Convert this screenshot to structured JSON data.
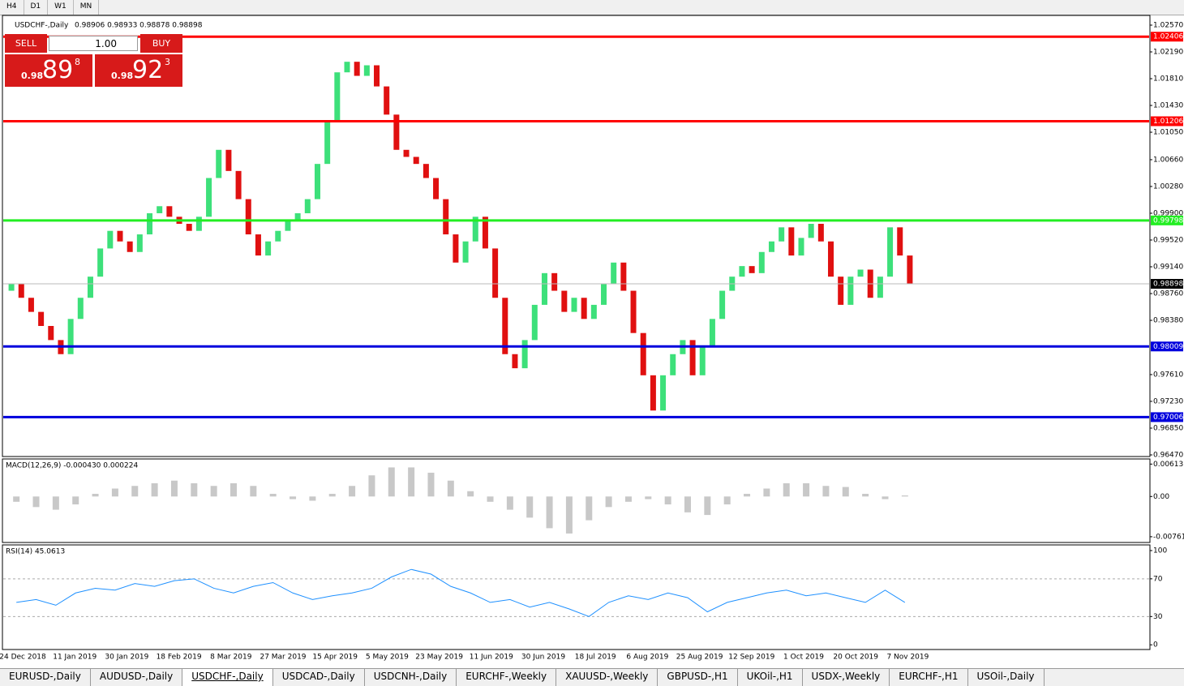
{
  "timeframes": [
    "H4",
    "D1",
    "W1",
    "MN"
  ],
  "header": {
    "symbol": "USDCHF-,Daily",
    "ohlc": "0.98906 0.98933 0.98878 0.98898"
  },
  "trade_panel": {
    "sell": "SELL",
    "buy": "BUY",
    "lot": "1.00",
    "sell_price": {
      "prefix": "0.98",
      "big": "89",
      "sup": "8"
    },
    "buy_price": {
      "prefix": "0.98",
      "big": "92",
      "sup": "3"
    }
  },
  "chart_data": {
    "type": "candlestick",
    "up_color": "#3de07a",
    "down_color": "#e01010",
    "x_labels": [
      "24 Dec 2018",
      "11 Jan 2019",
      "30 Jan 2019",
      "18 Feb 2019",
      "8 Mar 2019",
      "27 Mar 2019",
      "15 Apr 2019",
      "5 May 2019",
      "23 May 2019",
      "11 Jun 2019",
      "30 Jun 2019",
      "18 Jul 2019",
      "6 Aug 2019",
      "25 Aug 2019",
      "12 Sep 2019",
      "1 Oct 2019",
      "20 Oct 2019",
      "7 Nov 2019"
    ],
    "first_open": 0.988,
    "closes": [
      0.989,
      0.987,
      0.985,
      0.983,
      0.981,
      0.979,
      0.984,
      0.987,
      0.99,
      0.994,
      0.9965,
      0.995,
      0.9935,
      0.996,
      0.999,
      1.0,
      0.9985,
      0.9975,
      0.9965,
      0.9985,
      1.004,
      1.008,
      1.005,
      1.001,
      0.996,
      0.993,
      0.995,
      0.9965,
      0.998,
      0.999,
      1.001,
      1.006,
      1.012,
      1.019,
      1.0205,
      1.0185,
      1.02,
      1.017,
      1.013,
      1.008,
      1.007,
      1.006,
      1.004,
      1.001,
      0.996,
      0.992,
      0.995,
      0.9985,
      0.994,
      0.987,
      0.979,
      0.977,
      0.981,
      0.986,
      0.9905,
      0.988,
      0.985,
      0.987,
      0.984,
      0.986,
      0.989,
      0.992,
      0.988,
      0.982,
      0.976,
      0.971,
      0.976,
      0.979,
      0.981,
      0.976,
      0.98,
      0.984,
      0.988,
      0.99,
      0.9915,
      0.9905,
      0.9935,
      0.995,
      0.997,
      0.993,
      0.9955,
      0.9975,
      0.995,
      0.99,
      0.986,
      0.99,
      0.991,
      0.987,
      0.99,
      0.997,
      0.993,
      0.98898
    ],
    "ylim": [
      0.96447,
      1.02708
    ],
    "yticks": [
      {
        "value": 1.0257,
        "label": "1.02570"
      },
      {
        "value": 1.0219,
        "label": "1.02190"
      },
      {
        "value": 1.0181,
        "label": "1.01810"
      },
      {
        "value": 1.0143,
        "label": "1.01430"
      },
      {
        "value": 1.0105,
        "label": "1.01050"
      },
      {
        "value": 1.0066,
        "label": "1.00660"
      },
      {
        "value": 1.0028,
        "label": "1.00280"
      },
      {
        "value": 0.999,
        "label": "0.99900"
      },
      {
        "value": 0.9952,
        "label": "0.99520"
      },
      {
        "value": 0.9914,
        "label": "0.99140"
      },
      {
        "value": 0.9876,
        "label": "0.98760"
      },
      {
        "value": 0.9838,
        "label": "0.98380"
      },
      {
        "value": 0.9761,
        "label": "0.97610"
      },
      {
        "value": 0.9723,
        "label": "0.97230"
      },
      {
        "value": 0.9685,
        "label": "0.96850"
      },
      {
        "value": 0.9647,
        "label": "0.96470"
      }
    ],
    "levels": [
      {
        "value": 1.02406,
        "label": "1.02406",
        "color": "#ff0000"
      },
      {
        "value": 1.01206,
        "label": "1.01206",
        "color": "#ff0000"
      },
      {
        "value": 0.99798,
        "label": "0.99798",
        "color": "#22ee22"
      },
      {
        "value": 0.98009,
        "label": "0.98009",
        "color": "#0000dd"
      },
      {
        "value": 0.97006,
        "label": "0.97006",
        "color": "#0000dd"
      }
    ],
    "current": {
      "value": 0.98898,
      "label": "0.98898"
    }
  },
  "macd": {
    "title": "MACD(12,26,9) -0.000430 0.000224",
    "ylim": [
      -0.0087,
      0.0071
    ],
    "yticks": [
      {
        "value": 0.00613,
        "label": "0.00613"
      },
      {
        "value": 0,
        "label": "0.00"
      },
      {
        "value": -0.00761,
        "label": "-0.00761"
      }
    ],
    "values": [
      -0.001,
      -0.002,
      -0.0025,
      -0.0015,
      0.0005,
      0.0015,
      0.002,
      0.0025,
      0.003,
      0.0025,
      0.002,
      0.0025,
      0.002,
      0.0005,
      -0.0005,
      -0.0008,
      0.0005,
      0.002,
      0.004,
      0.0055,
      0.0055,
      0.0045,
      0.003,
      0.001,
      -0.001,
      -0.0025,
      -0.004,
      -0.006,
      -0.007,
      -0.0045,
      -0.002,
      -0.001,
      -0.0005,
      -0.0015,
      -0.003,
      -0.0035,
      -0.0015,
      0.0005,
      0.0015,
      0.0025,
      0.0025,
      0.002,
      0.0018,
      0.0005,
      -0.0005,
      0.0002
    ]
  },
  "rsi": {
    "title": "RSI(14) 45.0613",
    "ylim": [
      -5,
      106
    ],
    "yticks": [
      100,
      70,
      30,
      0
    ],
    "values": [
      45,
      48,
      42,
      55,
      60,
      58,
      65,
      62,
      68,
      70,
      60,
      55,
      62,
      66,
      55,
      48,
      52,
      55,
      60,
      72,
      80,
      75,
      62,
      55,
      45,
      48,
      40,
      45,
      38,
      30,
      45,
      52,
      48,
      55,
      50,
      35,
      45,
      50,
      55,
      58,
      52,
      55,
      50,
      45,
      58,
      45
    ]
  },
  "tabs": [
    "EURUSD-,Daily",
    "AUDUSD-,Daily",
    "USDCHF-,Daily",
    "USDCAD-,Daily",
    "USDCNH-,Daily",
    "EURCHF-,Weekly",
    "XAUUSD-,Weekly",
    "GBPUSD-,H1",
    "UKOil-,H1",
    "USDX-,Weekly",
    "EURCHF-,H1",
    "USOil-,Daily"
  ],
  "active_tab": 2
}
